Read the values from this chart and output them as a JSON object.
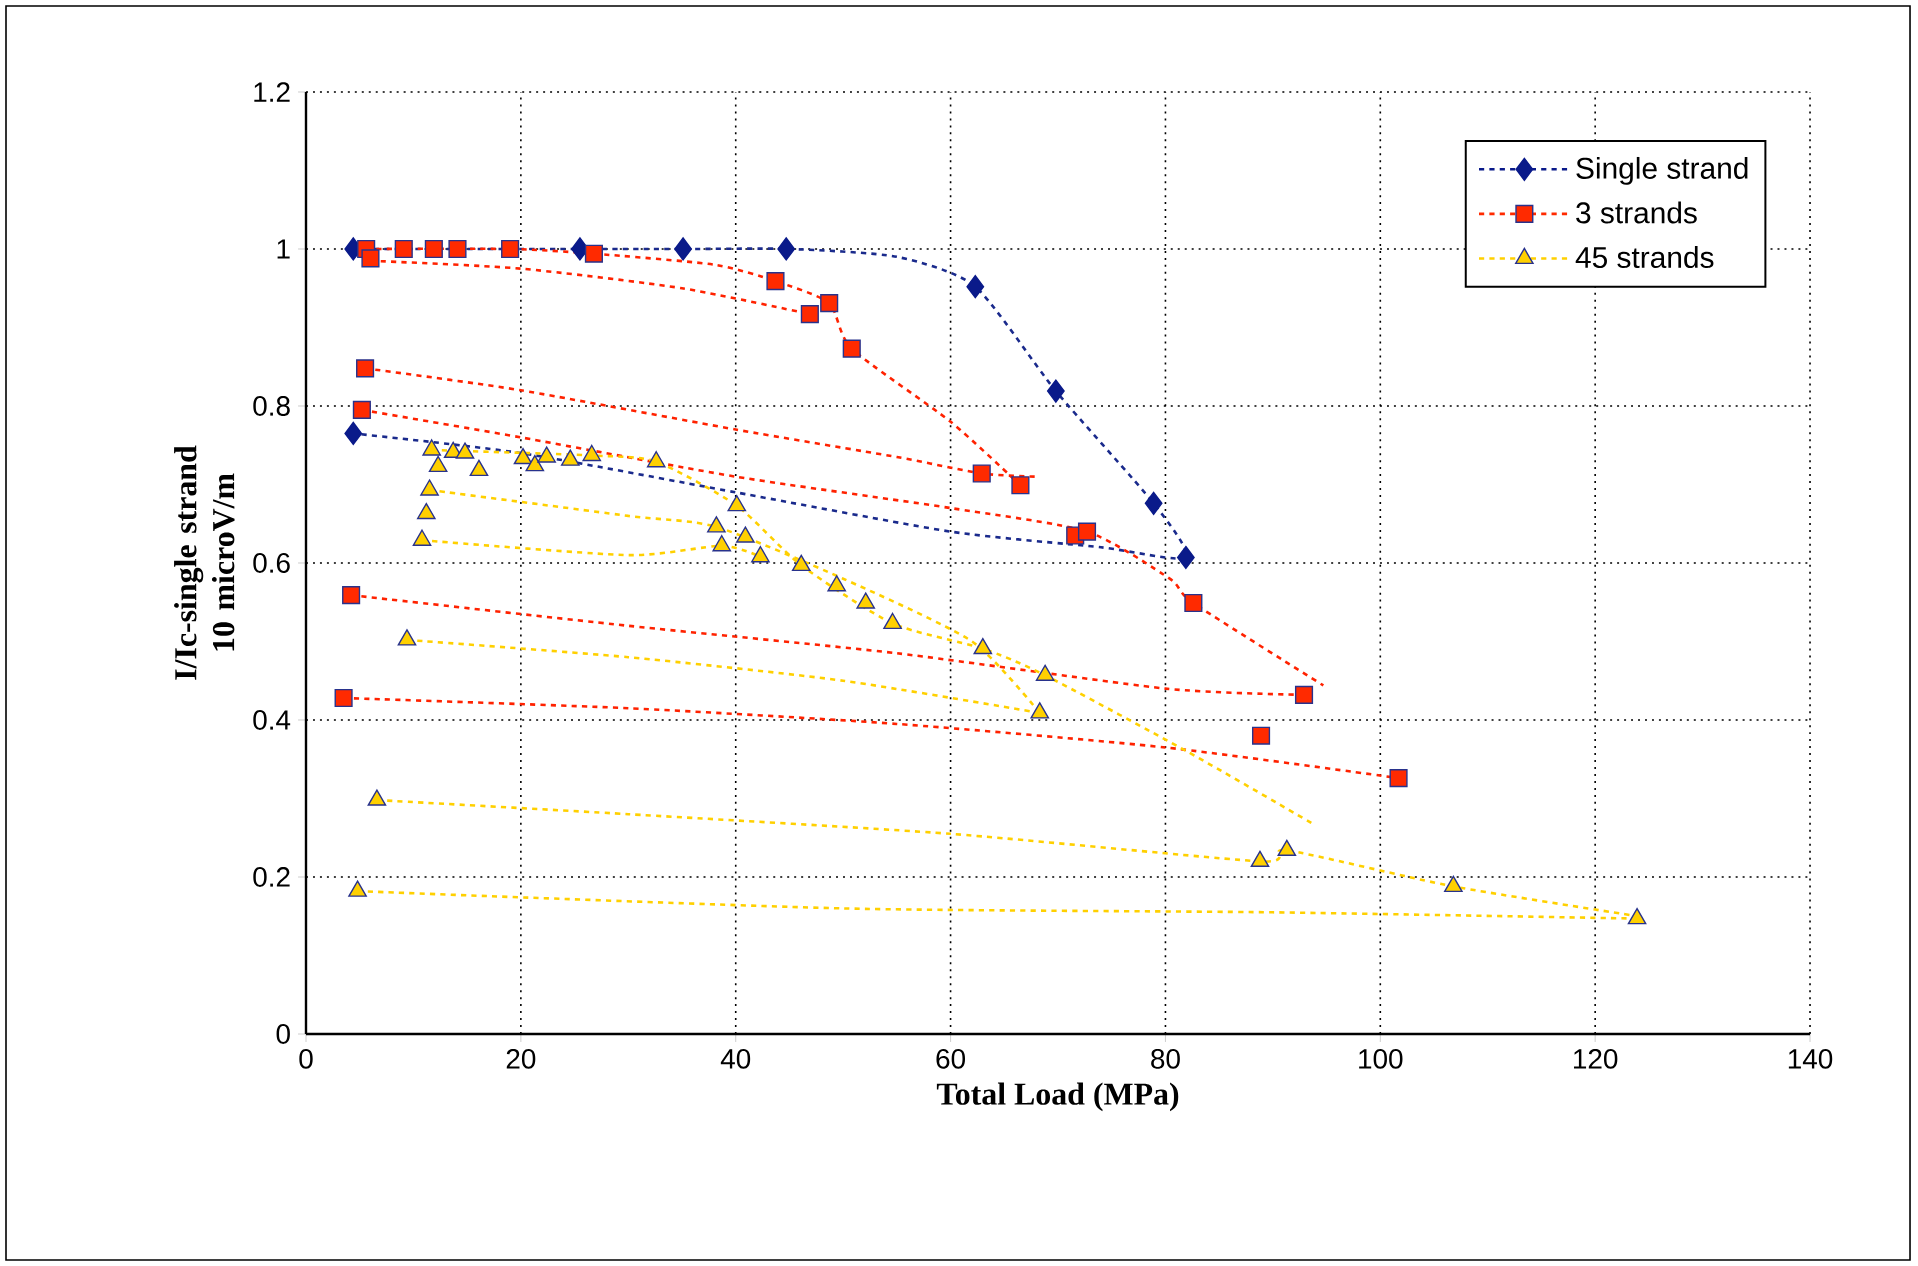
{
  "chart_data": {
    "type": "scatter",
    "xlabel": "Total Load (MPa)",
    "ylabel": "I/Ic-single strand 10 microV/m",
    "xlim": [
      0,
      140
    ],
    "ylim": [
      0,
      1.2
    ],
    "xticks": [
      0,
      20,
      40,
      60,
      80,
      100,
      120,
      140
    ],
    "yticks": [
      0,
      0.2,
      0.4,
      0.6,
      0.8,
      1,
      1.2
    ],
    "grid": true,
    "legend": "top right",
    "series": [
      {
        "type": "line",
        "color": "#1a2a8c",
        "marker": "none",
        "line_style": "dotted",
        "x": [
          4.4,
          20,
          35,
          45,
          55,
          62.3,
          69.8,
          78.9,
          81.9,
          74,
          60,
          40,
          20,
          4.4
        ],
        "values": [
          1.0,
          1.0,
          1.0,
          1.0,
          0.99,
          0.952,
          0.819,
          0.676,
          0.607,
          0.62,
          0.64,
          0.69,
          0.74,
          0.765
        ]
      },
      {
        "type": "line",
        "color": "#ff2200",
        "marker": "none",
        "line_style": "dotted",
        "x": [
          5.6,
          19,
          26.8,
          38,
          43.7,
          48.7,
          50.8,
          60,
          66.5
        ],
        "values": [
          1.0,
          1.0,
          0.994,
          0.98,
          0.959,
          0.931,
          0.873,
          0.78,
          0.699
        ]
      },
      {
        "type": "line",
        "color": "#ff2200",
        "marker": "none",
        "line_style": "dotted",
        "x": [
          6,
          20,
          35,
          46.9
        ],
        "values": [
          0.985,
          0.975,
          0.95,
          0.917
        ]
      },
      {
        "type": "line",
        "color": "#ff2200",
        "marker": "none",
        "line_style": "dotted",
        "x": [
          5.5,
          20,
          40,
          55,
          62.9,
          68
        ],
        "values": [
          0.848,
          0.82,
          0.77,
          0.735,
          0.714,
          0.71
        ]
      },
      {
        "type": "line",
        "color": "#ff2200",
        "marker": "none",
        "line_style": "dotted",
        "x": [
          5.2,
          20,
          40,
          60,
          72.7,
          80.4,
          82.6,
          94.7
        ],
        "values": [
          0.795,
          0.76,
          0.71,
          0.67,
          0.64,
          0.58,
          0.549,
          0.444
        ]
      },
      {
        "type": "line",
        "color": "#ff2200",
        "marker": "none",
        "line_style": "dotted",
        "x": [
          4.2,
          30,
          55,
          80,
          92.9
        ],
        "values": [
          0.559,
          0.52,
          0.485,
          0.44,
          0.432
        ]
      },
      {
        "type": "line",
        "color": "#ff2200",
        "marker": "none",
        "line_style": "dotted",
        "x": [
          3.5,
          30,
          55,
          80,
          101.7
        ],
        "values": [
          0.428,
          0.415,
          0.395,
          0.365,
          0.326
        ]
      },
      {
        "type": "line",
        "color": "#ffd000",
        "marker": "none",
        "line_style": "dotted",
        "x": [
          11.7,
          26.6,
          32.6,
          40.1,
          46.1,
          54.6,
          63,
          68.8,
          82,
          93.7
        ],
        "values": [
          0.744,
          0.737,
          0.729,
          0.673,
          0.597,
          0.523,
          0.491,
          0.457,
          0.36,
          0.268
        ]
      },
      {
        "type": "line",
        "color": "#ffd000",
        "marker": "none",
        "line_style": "dotted",
        "x": [
          11.5,
          30,
          38.2,
          50,
          62,
          68.3
        ],
        "values": [
          0.693,
          0.66,
          0.646,
          0.58,
          0.5,
          0.409
        ]
      },
      {
        "type": "line",
        "color": "#ffd000",
        "marker": "none",
        "line_style": "dotted",
        "x": [
          10.8,
          30,
          38.7,
          42.3
        ],
        "values": [
          0.629,
          0.61,
          0.622,
          0.608
        ]
      },
      {
        "type": "line",
        "color": "#ffd000",
        "marker": "none",
        "line_style": "dotted",
        "x": [
          9.4,
          30,
          50,
          68.3
        ],
        "values": [
          0.502,
          0.48,
          0.45,
          0.409
        ]
      },
      {
        "type": "line",
        "color": "#ffd000",
        "marker": "none",
        "line_style": "dotted",
        "x": [
          6.6,
          30,
          60,
          88.8,
          91.3,
          106.8,
          124
        ],
        "values": [
          0.298,
          0.28,
          0.255,
          0.22,
          0.234,
          0.188,
          0.15
        ]
      },
      {
        "type": "line",
        "color": "#ffd000",
        "marker": "none",
        "line_style": "dotted",
        "x": [
          4.8,
          50,
          90,
          123.9
        ],
        "values": [
          0.182,
          0.16,
          0.155,
          0.147
        ]
      },
      {
        "name": "Single strand",
        "color": "#0a1a8a",
        "marker": "diamond",
        "x": [
          4.4,
          6.5,
          8.5,
          25.5,
          35.1,
          44.7,
          62.3,
          69.8,
          78.9,
          81.9,
          4.4
        ],
        "values": [
          1.0,
          null,
          null,
          1.0,
          1.0,
          1.0,
          0.952,
          0.819,
          0.676,
          0.607,
          0.765
        ]
      },
      {
        "name": "3 strands",
        "color": "#ff2a00",
        "marker": "square",
        "x": [
          5.6,
          6.0,
          9.1,
          11.9,
          14.1,
          19.0,
          26.8,
          43.7,
          46.9,
          48.7,
          50.8,
          62.9,
          66.5,
          71.6,
          72.7,
          82.6,
          92.9,
          88.9,
          101.7,
          5.5,
          5.2,
          4.2,
          3.5
        ],
        "values": [
          1.0,
          0.988,
          1.0,
          1.0,
          1.0,
          1.0,
          0.994,
          0.959,
          0.917,
          0.931,
          0.873,
          0.714,
          0.699,
          0.635,
          0.64,
          0.549,
          0.432,
          0.38,
          0.326,
          0.848,
          0.795,
          0.559,
          0.428
        ]
      },
      {
        "name": "45 strands",
        "color": "#ffd000",
        "marker": "triangle",
        "x": [
          11.7,
          13.7,
          14.8,
          12.3,
          16.1,
          11.5,
          11.2,
          10.8,
          20.2,
          21.3,
          22.4,
          24.6,
          26.6,
          32.6,
          40.1,
          38.2,
          40.9,
          38.7,
          42.3,
          46.1,
          49.4,
          52.1,
          54.6,
          9.4,
          6.6,
          4.8,
          63.0,
          68.8,
          68.3,
          88.8,
          91.3,
          106.8,
          123.9
        ],
        "values": [
          0.744,
          0.741,
          0.74,
          0.723,
          0.718,
          0.693,
          0.663,
          0.629,
          0.733,
          0.724,
          0.735,
          0.731,
          0.737,
          0.729,
          0.673,
          0.646,
          0.633,
          0.622,
          0.608,
          0.597,
          0.571,
          0.549,
          0.523,
          0.502,
          0.298,
          0.182,
          0.491,
          0.457,
          0.409,
          0.22,
          0.234,
          0.188,
          0.147
        ]
      }
    ]
  }
}
